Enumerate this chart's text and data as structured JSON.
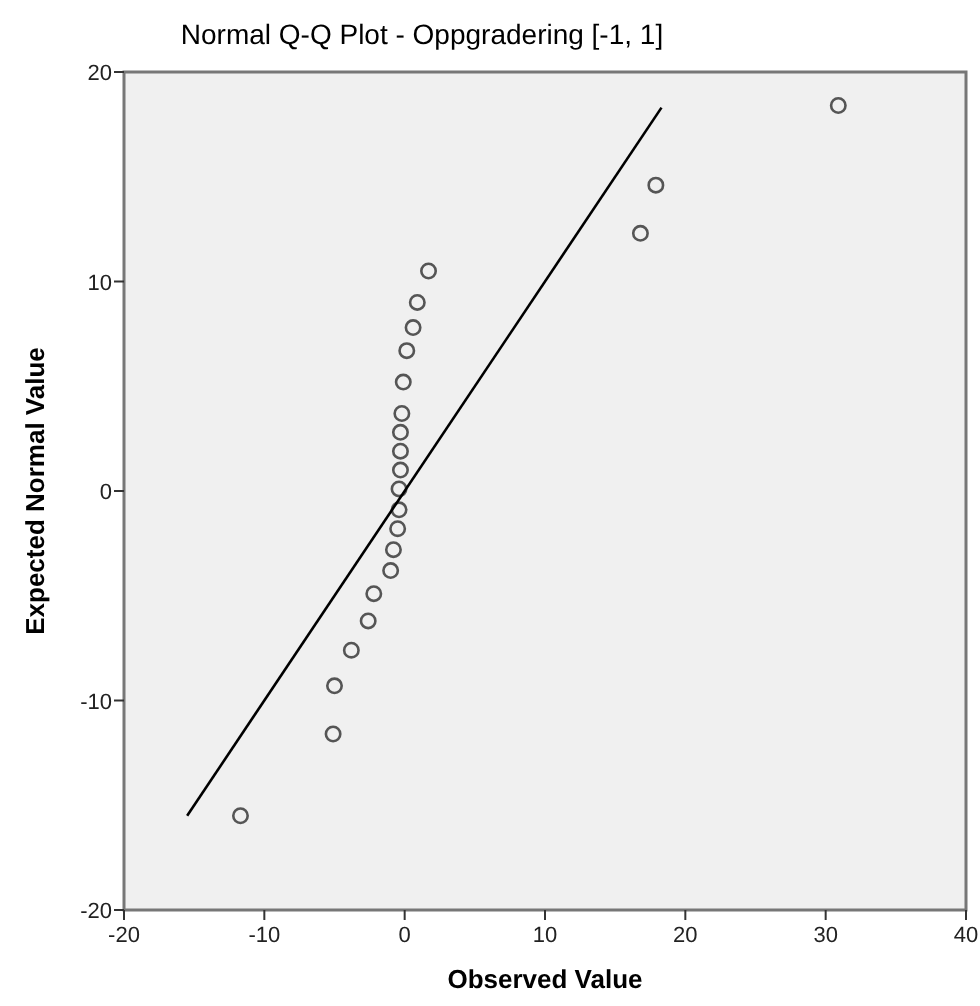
{
  "chart_data": {
    "type": "scatter",
    "title": "Normal Q-Q Plot - Oppgradering [-1, 1]",
    "xlabel": "Observed Value",
    "ylabel": "Expected Normal Value",
    "xlim": [
      -20,
      40
    ],
    "xticks": [
      -20,
      -10,
      0,
      10,
      20,
      30,
      40
    ],
    "ylim": [
      -20,
      20
    ],
    "yticks": [
      -20,
      -10,
      0,
      10,
      20
    ],
    "grid": false,
    "marker": "circle",
    "series": [
      {
        "color": "#555555",
        "x": [
          -11.7,
          -5.1,
          -5.0,
          -3.8,
          -2.6,
          -2.2,
          -1.0,
          -0.8,
          -0.5,
          -0.4,
          -0.4,
          -0.3,
          -0.3,
          -0.3,
          -0.2,
          -0.1,
          0.15,
          0.6,
          0.9,
          1.7,
          16.8,
          17.9,
          30.9
        ],
        "values": [
          -15.5,
          -11.6,
          -9.3,
          -7.6,
          -6.2,
          -4.9,
          -3.8,
          -2.8,
          -1.8,
          -0.9,
          0.1,
          1.0,
          1.9,
          2.8,
          3.7,
          5.2,
          6.7,
          7.8,
          9.0,
          10.5,
          12.3,
          14.6,
          18.4
        ]
      },
      {
        "type": "line",
        "color": "#000000",
        "x": [
          -15.5,
          18.3
        ],
        "values": [
          -15.5,
          18.3
        ],
        "marker": "none",
        "line_style": "solid"
      }
    ]
  }
}
